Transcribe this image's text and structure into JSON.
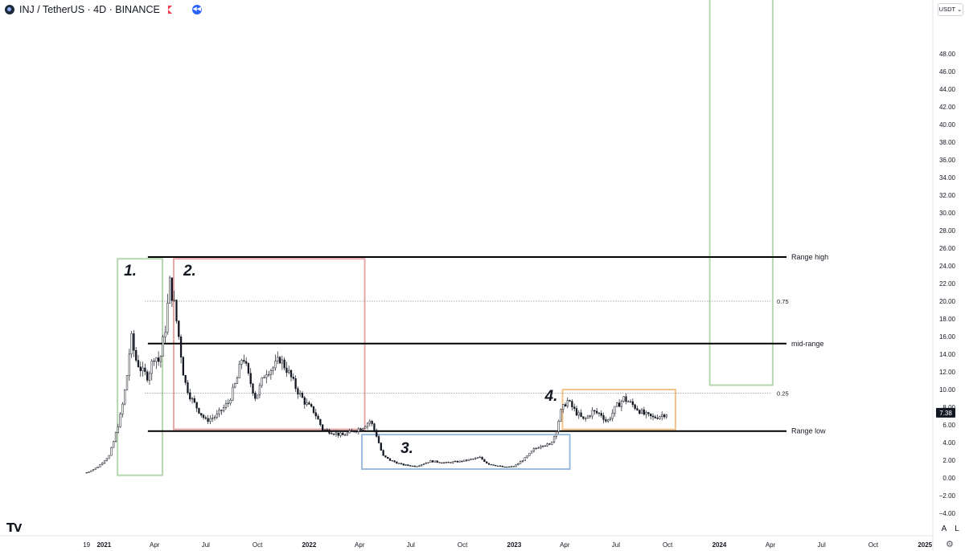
{
  "header": {
    "title": "INJ / TetherUS · 4D · BINANCE",
    "icons": [
      "inj-coin-icon",
      "flag-icon",
      "replay-icon"
    ]
  },
  "price_scale": {
    "currency": "USDT",
    "current_price_label": "7.38"
  },
  "footer": {
    "btn_auto": "A",
    "btn_log": "L",
    "icons": [
      "tradingview-logo-icon",
      "settings-icon"
    ]
  },
  "colors": {
    "candle": "#131722",
    "level_line": "#000000",
    "green_box": "#b7d7b1",
    "red_box": "#e8a7a7",
    "blue_box": "#9cbbe0",
    "orange_box": "#f4c58b",
    "price_tag": "#131722"
  },
  "chart_data": {
    "type": "candlestick",
    "y_axis": {
      "range": [
        -4,
        50
      ],
      "ticks": [
        -4,
        -2,
        0,
        2,
        4,
        6,
        8,
        10,
        12,
        14,
        16,
        18,
        20,
        22,
        24,
        26,
        28,
        30,
        32,
        34,
        36,
        38,
        40,
        42,
        44,
        46,
        48
      ],
      "tick_labels": [
        "−4.00",
        "−2.00",
        "0.00",
        "2.00",
        "4.00",
        "6.00",
        "8.00",
        "10.00",
        "12.00",
        "14.00",
        "16.00",
        "18.00",
        "20.00",
        "22.00",
        "24.00",
        "26.00",
        "28.00",
        "30.00",
        "32.00",
        "34.00",
        "36.00",
        "38.00",
        "40.00",
        "42.00",
        "44.00",
        "46.00",
        "48.00"
      ]
    },
    "x_axis": {
      "range": [
        "2020-11-20",
        "2025-01-15"
      ],
      "ticks": [
        {
          "date": "2020-12-01",
          "label": "19"
        },
        {
          "date": "2021-01-01",
          "label": "2021"
        },
        {
          "date": "2021-04-01",
          "label": "Apr"
        },
        {
          "date": "2021-07-01",
          "label": "Jul"
        },
        {
          "date": "2021-10-01",
          "label": "Oct"
        },
        {
          "date": "2022-01-01",
          "label": "2022"
        },
        {
          "date": "2022-04-01",
          "label": "Apr"
        },
        {
          "date": "2022-07-01",
          "label": "Jul"
        },
        {
          "date": "2022-10-01",
          "label": "Oct"
        },
        {
          "date": "2023-01-01",
          "label": "2023"
        },
        {
          "date": "2023-04-01",
          "label": "Apr"
        },
        {
          "date": "2023-07-01",
          "label": "Jul"
        },
        {
          "date": "2023-10-01",
          "label": "Oct"
        },
        {
          "date": "2024-01-01",
          "label": "2024"
        },
        {
          "date": "2024-04-01",
          "label": "Apr"
        },
        {
          "date": "2024-07-01",
          "label": "Jul"
        },
        {
          "date": "2024-10-01",
          "label": "Oct"
        },
        {
          "date": "2025-01-01",
          "label": "2025"
        }
      ]
    },
    "price_path": [
      [
        "2020-12-01",
        0.6
      ],
      [
        "2020-12-20",
        1.2
      ],
      [
        "2021-01-10",
        2.5
      ],
      [
        "2021-01-20",
        4.5
      ],
      [
        "2021-02-01",
        7.5
      ],
      [
        "2021-02-10",
        11.0
      ],
      [
        "2021-02-18",
        16.0
      ],
      [
        "2021-02-26",
        13.5
      ],
      [
        "2021-03-10",
        12.0
      ],
      [
        "2021-03-20",
        11.5
      ],
      [
        "2021-04-01",
        14.0
      ],
      [
        "2021-04-10",
        13.0
      ],
      [
        "2021-04-20",
        17.0
      ],
      [
        "2021-04-28",
        22.0
      ],
      [
        "2021-05-05",
        20.0
      ],
      [
        "2021-05-14",
        16.0
      ],
      [
        "2021-05-24",
        11.0
      ],
      [
        "2021-06-05",
        9.0
      ],
      [
        "2021-06-20",
        7.5
      ],
      [
        "2021-07-01",
        6.5
      ],
      [
        "2021-07-20",
        7.0
      ],
      [
        "2021-08-10",
        8.5
      ],
      [
        "2021-08-25",
        11.0
      ],
      [
        "2021-09-05",
        14.0
      ],
      [
        "2021-09-15",
        11.5
      ],
      [
        "2021-09-28",
        9.0
      ],
      [
        "2021-10-15",
        12.0
      ],
      [
        "2021-10-30",
        12.5
      ],
      [
        "2021-11-10",
        13.5
      ],
      [
        "2021-11-25",
        12.0
      ],
      [
        "2021-12-10",
        10.0
      ],
      [
        "2021-12-25",
        8.5
      ],
      [
        "2022-01-10",
        7.5
      ],
      [
        "2022-01-25",
        5.5
      ],
      [
        "2022-02-10",
        5.2
      ],
      [
        "2022-03-01",
        4.8
      ],
      [
        "2022-03-20",
        5.3
      ],
      [
        "2022-04-05",
        5.7
      ],
      [
        "2022-04-20",
        6.5
      ],
      [
        "2022-05-01",
        4.8
      ],
      [
        "2022-05-12",
        2.5
      ],
      [
        "2022-05-25",
        2.0
      ],
      [
        "2022-06-15",
        1.5
      ],
      [
        "2022-07-10",
        1.3
      ],
      [
        "2022-08-05",
        1.9
      ],
      [
        "2022-09-01",
        1.7
      ],
      [
        "2022-10-01",
        1.9
      ],
      [
        "2022-11-01",
        2.3
      ],
      [
        "2022-11-15",
        1.6
      ],
      [
        "2022-12-15",
        1.2
      ],
      [
        "2023-01-01",
        1.3
      ],
      [
        "2023-01-20",
        2.2
      ],
      [
        "2023-02-05",
        3.2
      ],
      [
        "2023-02-20",
        3.8
      ],
      [
        "2023-03-05",
        3.7
      ],
      [
        "2023-03-15",
        5.0
      ],
      [
        "2023-03-25",
        7.5
      ],
      [
        "2023-04-05",
        8.8
      ],
      [
        "2023-04-20",
        7.5
      ],
      [
        "2023-05-05",
        6.5
      ],
      [
        "2023-05-20",
        7.5
      ],
      [
        "2023-06-05",
        7.2
      ],
      [
        "2023-06-15",
        6.3
      ],
      [
        "2023-07-01",
        8.0
      ],
      [
        "2023-07-15",
        9.0
      ],
      [
        "2023-08-01",
        8.2
      ],
      [
        "2023-08-20",
        7.2
      ],
      [
        "2023-09-05",
        6.8
      ],
      [
        "2023-09-20",
        7.1
      ],
      [
        "2023-10-01",
        7.38
      ]
    ],
    "current_price": 7.38,
    "horizontal_levels": [
      {
        "label": "Range high",
        "price": 25.0,
        "style": "solid",
        "from": "2021-03-20",
        "to": "2024-04-01"
      },
      {
        "label": "0.75",
        "price": 20.0,
        "style": "dotted",
        "from": "2021-03-15",
        "to": "2024-04-01"
      },
      {
        "label": "mid-range",
        "price": 15.2,
        "style": "solid",
        "from": "2021-03-20",
        "to": "2024-04-01"
      },
      {
        "label": "0.25",
        "price": 9.6,
        "style": "dotted",
        "from": "2021-03-15",
        "to": "2024-04-01"
      },
      {
        "label": "Range low",
        "price": 5.3,
        "style": "solid",
        "from": "2021-03-20",
        "to": "2024-04-01"
      }
    ],
    "annotations": [
      {
        "label": "1.",
        "color": "green",
        "x0": "2021-01-25",
        "x1": "2021-04-15",
        "y0": 0.3,
        "y1": 24.8
      },
      {
        "label": "2.",
        "color": "red",
        "x0": "2021-05-05",
        "x1": "2022-04-10",
        "y0": 5.5,
        "y1": 24.8
      },
      {
        "label": "3.",
        "color": "blue",
        "x0": "2022-04-05",
        "x1": "2023-04-10",
        "y0": 1.0,
        "y1": 4.9
      },
      {
        "label": "4.",
        "color": "orange",
        "x0": "2023-03-28",
        "x1": "2023-10-15",
        "y0": 5.5,
        "y1": 10.0
      },
      {
        "label": "",
        "color": "green",
        "x0": "2023-12-15",
        "x1": "2024-04-05",
        "y0": 10.5,
        "y1": 55.0
      }
    ]
  }
}
